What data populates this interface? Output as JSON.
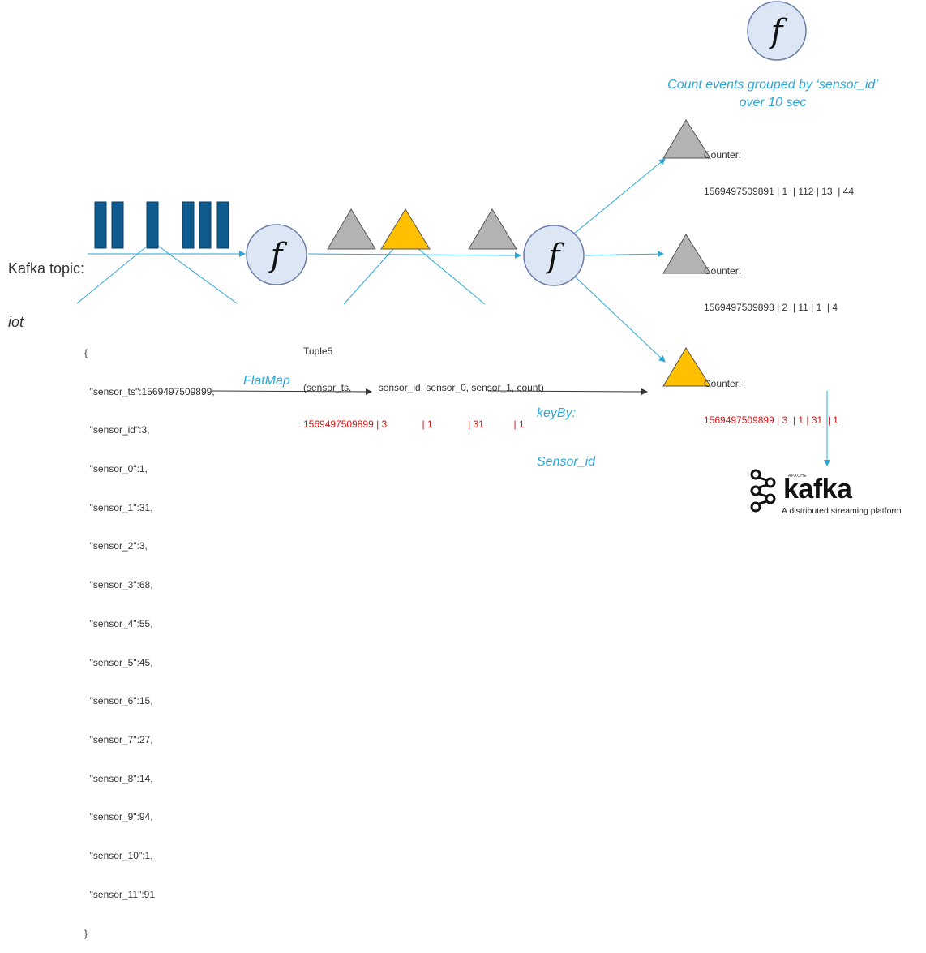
{
  "source": {
    "label": "Kafka topic:",
    "topic": "iot"
  },
  "function_symbol": "f",
  "json_event": [
    "{",
    "  \"sensor_ts\":1569497509899,",
    "  \"sensor_id\":3,",
    "  \"sensor_0\":1,",
    "  \"sensor_1\":31,",
    "  \"sensor_2\":3,",
    "  \"sensor_3\":68,",
    "  \"sensor_4\":55,",
    "  \"sensor_5\":45,",
    "  \"sensor_6\":15,",
    "  \"sensor_7\":27,",
    "  \"sensor_8\":14,",
    "  \"sensor_9\":94,",
    "  \"sensor_10\":1,",
    "  \"sensor_11\":91",
    "}"
  ],
  "tuple": {
    "title": "Tuple5",
    "fields": "(sensor_ts,          sensor_id, sensor_0, sensor_1, count)",
    "values": "1569497509899 | 3             | 1             | 31           | 1"
  },
  "operations": {
    "flatmap": "FlatMap",
    "keyby_line1": "keyBy:",
    "keyby_line2": "Sensor_id"
  },
  "aggregation_caption": "Count events grouped by ‘sensor_id’ over 10 sec",
  "counters": [
    {
      "label": "Counter:",
      "value": "1569497509891 | 1  | 112 | 13  | 44",
      "highlight": false
    },
    {
      "label": "Counter:",
      "value": "1569497509898 | 2  | 11 | 1  | 4",
      "highlight": false
    },
    {
      "label": "Counter:",
      "value": "1569497509899 | 3  | 1 | 31  | 1",
      "highlight": true
    }
  ],
  "sink": {
    "apache": "APACHE",
    "name": "kafka",
    "tagline": "A distributed streaming platform"
  },
  "colors": {
    "stream_bar": "#0f5a8f",
    "arrow": "#2aa7d8",
    "function_fill": "#dce6f5",
    "function_stroke": "#6b7fa8",
    "triangle_gray": "#b3b3b3",
    "triangle_yellow": "#ffc000",
    "highlight_text": "#e01010"
  }
}
